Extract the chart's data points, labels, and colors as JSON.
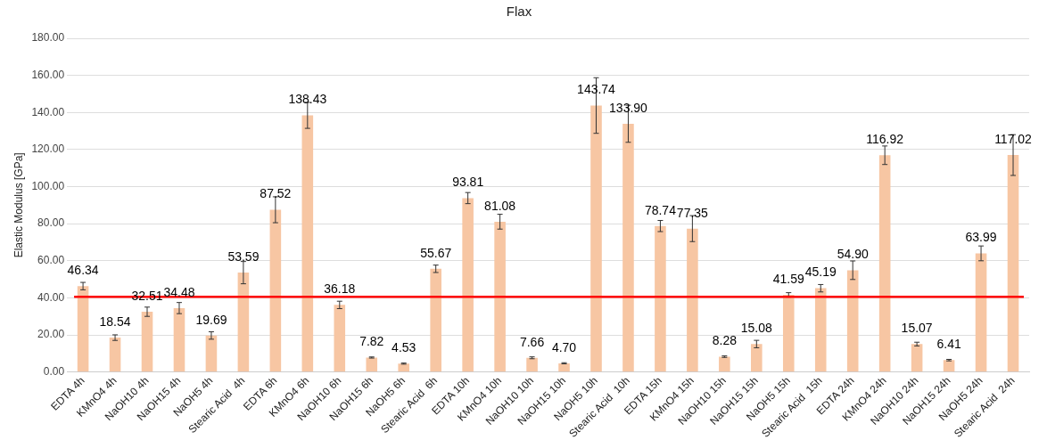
{
  "chart_data": {
    "type": "bar",
    "title": "Flax",
    "ylabel": "Elastic Modulus [GPa]",
    "categories": [
      "EDTA 4h",
      "KMnO4 4h",
      "NaOH10 4h",
      "NaOH15 4h",
      "NaOH5 4h",
      "Stearic Acid  4h",
      "EDTA 6h",
      "KMnO4 6h",
      "NaOH10 6h",
      "NaOH15 6h",
      "NaOH5 6h",
      "Stearic Acid  6h",
      "EDTA 10h",
      "KMnO4 10h",
      "NaOH10 10h",
      "NaOH15 10h",
      "NaOH5 10h",
      "Stearic Acid  10h",
      "EDTA 15h",
      "KMnO4 15h",
      "NaOH10 15h",
      "NaOH15 15h",
      "NaOH5 15h",
      "Stearic Acid  15h",
      "EDTA 24h",
      "KMnO4 24h",
      "NaOH10 24h",
      "NaOH15 24h",
      "NaOH5 24h",
      "Stearic Acid  24h"
    ],
    "values": [
      46.34,
      18.54,
      32.51,
      34.48,
      19.69,
      53.59,
      87.52,
      138.43,
      36.18,
      7.82,
      4.53,
      55.67,
      93.81,
      81.08,
      7.66,
      4.7,
      143.74,
      133.9,
      78.74,
      77.35,
      8.28,
      15.08,
      41.59,
      45.19,
      54.9,
      116.92,
      15.07,
      6.41,
      63.99,
      117.02
    ],
    "value_labels": [
      "46.34",
      "18.54",
      "32.51",
      "34.48",
      "19.69",
      "53.59",
      "87.52",
      "138.43",
      "36.18",
      "7.82",
      "4.53",
      "55.67",
      "93.81",
      "81.08",
      "7.66",
      "4.70",
      "143.74",
      "133.90",
      "78.74",
      "77.35",
      "8.28",
      "15.08",
      "41.59",
      "45.19",
      "54.90",
      "116.92",
      "15.07",
      "6.41",
      "63.99",
      "117.02"
    ],
    "errors": [
      2,
      1.5,
      2.5,
      3,
      2,
      6,
      7,
      7,
      2,
      0.3,
      0.3,
      2,
      3,
      4,
      0.5,
      0.3,
      15,
      10,
      3,
      7,
      0.4,
      2,
      1.2,
      2,
      5,
      5,
      1,
      0.4,
      4,
      11
    ],
    "color": "#f7c6a3",
    "ylim": [
      0,
      180
    ],
    "yticks": [
      {
        "value": 0,
        "label": "0.00"
      },
      {
        "value": 20,
        "label": "20.00"
      },
      {
        "value": 40,
        "label": "40.00"
      },
      {
        "value": 60,
        "label": "60.00"
      },
      {
        "value": 80,
        "label": "80.00"
      },
      {
        "value": 100,
        "label": "100.00"
      },
      {
        "value": 120,
        "label": "120.00"
      },
      {
        "value": 140,
        "label": "140.00"
      },
      {
        "value": 160,
        "label": "160.00"
      },
      {
        "value": 180,
        "label": "180.00"
      }
    ],
    "grid": "y",
    "ref_lines": [
      {
        "axis": "y",
        "value": 40.5,
        "color": "#ff0000"
      }
    ]
  }
}
